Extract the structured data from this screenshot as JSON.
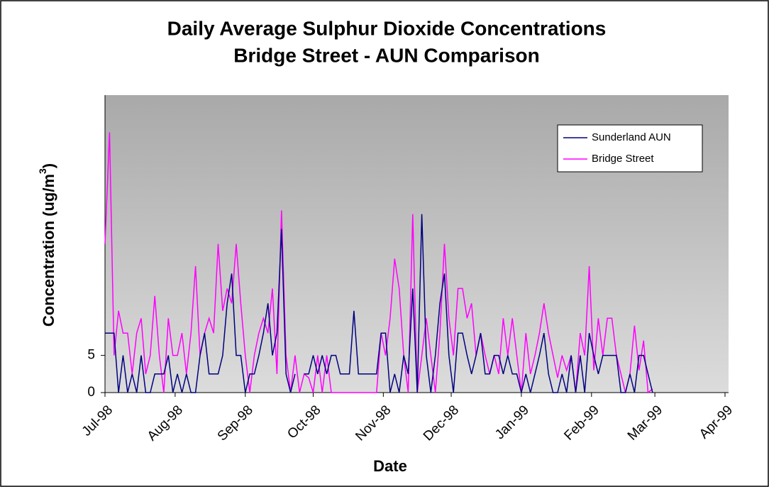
{
  "chart_data": {
    "type": "line",
    "title": [
      "Daily Average Sulphur Dioxide Concentrations",
      "Bridge Street - AUN Comparison"
    ],
    "xlabel": "Date",
    "ylabel": {
      "text": "Concentration (ug/m",
      "sup": "3",
      "end": ")"
    },
    "xlim": [
      0,
      274
    ],
    "xticks": [
      {
        "value": 0,
        "label": "Jul-98"
      },
      {
        "value": 31,
        "label": "Aug-98"
      },
      {
        "value": 62,
        "label": "Sep-98"
      },
      {
        "value": 92,
        "label": "Oct-98"
      },
      {
        "value": 123,
        "label": "Nov-98"
      },
      {
        "value": 153,
        "label": "Dec-98"
      },
      {
        "value": 184,
        "label": "Jan-99"
      },
      {
        "value": 215,
        "label": "Feb-99"
      },
      {
        "value": 243,
        "label": "Mar-99"
      },
      {
        "value": 274,
        "label": "Apr-99"
      }
    ],
    "ylim": [
      0,
      40
    ],
    "yticks": [
      0,
      5
    ],
    "legend": "upper right",
    "x": [
      0,
      2,
      4,
      6,
      8,
      10,
      12,
      14,
      16,
      18,
      20,
      22,
      24,
      26,
      28,
      30,
      32,
      34,
      36,
      38,
      40,
      42,
      44,
      46,
      48,
      50,
      52,
      54,
      56,
      58,
      60,
      62,
      64,
      66,
      68,
      70,
      72,
      74,
      76,
      78,
      80,
      82,
      84,
      86,
      88,
      90,
      92,
      94,
      96,
      98,
      100,
      102,
      104,
      106,
      108,
      110,
      112,
      114,
      116,
      118,
      120,
      122,
      124,
      126,
      128,
      130,
      132,
      134,
      136,
      138,
      140,
      142,
      144,
      146,
      148,
      150,
      152,
      154,
      156,
      158,
      160,
      162,
      164,
      166,
      168,
      170,
      172,
      174,
      176,
      178,
      180,
      182,
      184,
      186,
      188,
      190,
      192,
      194,
      196,
      198,
      200,
      202,
      204,
      206,
      208,
      210,
      212,
      214,
      216,
      218,
      220,
      222,
      224,
      226,
      228,
      230,
      232,
      234,
      236,
      238,
      240,
      242
    ],
    "series": [
      {
        "name": "Sunderland AUN",
        "color": "#000080",
        "values": [
          8,
          8,
          8,
          0,
          5,
          0,
          2.5,
          0,
          5,
          0,
          0,
          2.5,
          2.5,
          2.5,
          5,
          0,
          2.5,
          0,
          2.5,
          0,
          0,
          5,
          8,
          2.5,
          2.5,
          2.5,
          5,
          12,
          16,
          5,
          5,
          0,
          2.5,
          2.5,
          5,
          8,
          12,
          5,
          8,
          22,
          2.5,
          0,
          2.5,
          null,
          2.5,
          2.5,
          5,
          2.5,
          5,
          2.5,
          5,
          5,
          2.5,
          2.5,
          2.5,
          11,
          2.5,
          2.5,
          2.5,
          2.5,
          2.5,
          8,
          8,
          0,
          2.5,
          0,
          5,
          2.5,
          14,
          0,
          24,
          5,
          0,
          5,
          12,
          16,
          5,
          0,
          8,
          8,
          5,
          2.5,
          5,
          8,
          2.5,
          2.5,
          5,
          5,
          2.5,
          5,
          2.5,
          2.5,
          0,
          2.5,
          0,
          2.5,
          5,
          8,
          2.5,
          0,
          0,
          2.5,
          0,
          5,
          0,
          5,
          0,
          8,
          5,
          2.5,
          5,
          5,
          5,
          5,
          0,
          0,
          2.5,
          0,
          5,
          5,
          2.5,
          0
        ]
      },
      {
        "name": "Bridge Street",
        "color": "#ff00ff",
        "values": [
          20,
          35,
          5,
          11,
          8,
          8,
          2.5,
          8,
          10,
          2.5,
          5,
          13,
          5,
          0,
          10,
          5,
          5,
          8,
          2.5,
          8,
          17,
          5,
          8,
          10,
          8,
          20,
          11,
          14,
          12,
          20,
          12,
          5,
          0,
          5,
          8,
          10,
          8,
          14,
          2.5,
          24.5,
          5,
          0,
          5,
          0,
          2.5,
          2,
          0,
          5,
          0,
          5,
          0,
          0,
          0,
          0,
          0,
          0,
          0,
          0,
          0,
          0,
          0,
          8,
          5,
          10,
          18,
          14,
          5,
          0,
          24,
          0,
          5,
          10,
          5,
          0,
          8,
          20,
          10,
          5,
          14,
          14,
          10,
          12,
          5,
          8,
          5,
          2.5,
          5,
          2.5,
          10,
          5,
          10,
          5,
          0,
          8,
          2.5,
          5,
          8,
          12,
          8,
          5,
          2,
          5,
          3,
          5,
          0,
          8,
          5,
          17,
          3,
          10,
          5,
          10,
          10,
          5,
          2.5,
          0,
          2.5,
          9,
          3,
          7,
          0,
          0.5
        ]
      }
    ]
  }
}
